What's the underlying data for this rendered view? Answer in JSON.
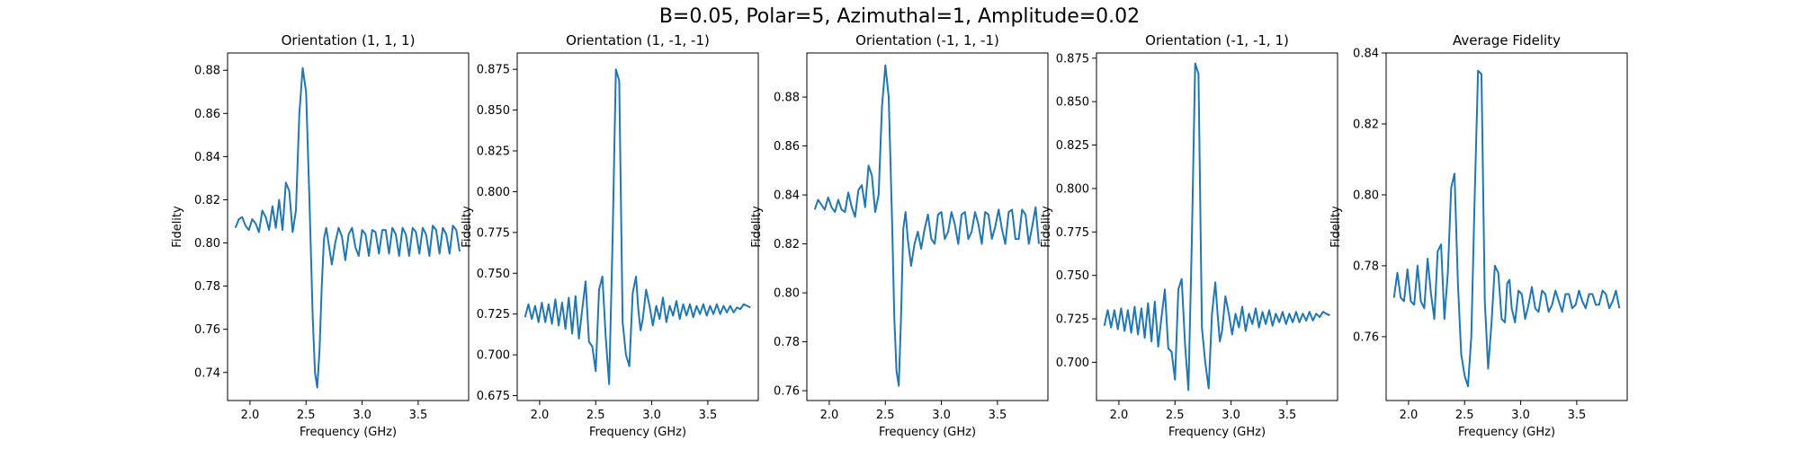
{
  "figure_title": "B=0.05, Polar=5, Azimuthal=1, Amplitude=0.02",
  "colors": {
    "line": "#1f77b4",
    "axes": "#000000",
    "background": "#ffffff"
  },
  "chart_data": [
    {
      "type": "line",
      "title": "Orientation (1, 1, 1)",
      "xlabel": "Frequency (GHz)",
      "ylabel": "Fidelity",
      "xlim": [
        1.8,
        3.95
      ],
      "ylim": [
        0.727,
        0.888
      ],
      "xticks": [
        2.0,
        2.5,
        3.0,
        3.5
      ],
      "xtick_labels": [
        "2.0",
        "2.5",
        "3.0",
        "3.5"
      ],
      "yticks": [
        0.74,
        0.76,
        0.78,
        0.8,
        0.82,
        0.84,
        0.86,
        0.88
      ],
      "ytick_labels": [
        "0.74",
        "0.76",
        "0.78",
        "0.80",
        "0.82",
        "0.84",
        "0.86",
        "0.88"
      ],
      "series": [
        {
          "x": [
            1.87,
            1.9,
            1.93,
            1.96,
            1.99,
            2.02,
            2.05,
            2.08,
            2.11,
            2.14,
            2.17,
            2.2,
            2.23,
            2.26,
            2.29,
            2.32,
            2.35,
            2.38,
            2.41,
            2.44,
            2.47,
            2.5,
            2.53,
            2.56,
            2.58,
            2.6,
            2.62,
            2.64,
            2.66,
            2.68,
            2.7,
            2.73,
            2.76,
            2.79,
            2.82,
            2.85,
            2.88,
            2.91,
            2.94,
            2.97,
            3.0,
            3.03,
            3.06,
            3.09,
            3.12,
            3.15,
            3.18,
            3.21,
            3.24,
            3.27,
            3.3,
            3.33,
            3.36,
            3.39,
            3.42,
            3.45,
            3.48,
            3.51,
            3.54,
            3.57,
            3.6,
            3.63,
            3.66,
            3.69,
            3.72,
            3.75,
            3.78,
            3.81,
            3.84,
            3.87
          ],
          "y": [
            0.807,
            0.811,
            0.812,
            0.808,
            0.806,
            0.811,
            0.809,
            0.805,
            0.815,
            0.812,
            0.806,
            0.817,
            0.807,
            0.82,
            0.806,
            0.828,
            0.824,
            0.805,
            0.815,
            0.86,
            0.881,
            0.87,
            0.82,
            0.765,
            0.74,
            0.733,
            0.75,
            0.78,
            0.802,
            0.807,
            0.8,
            0.79,
            0.8,
            0.807,
            0.803,
            0.792,
            0.804,
            0.807,
            0.798,
            0.794,
            0.806,
            0.804,
            0.794,
            0.806,
            0.805,
            0.795,
            0.806,
            0.806,
            0.795,
            0.807,
            0.804,
            0.794,
            0.807,
            0.804,
            0.794,
            0.807,
            0.805,
            0.795,
            0.807,
            0.804,
            0.794,
            0.808,
            0.806,
            0.795,
            0.807,
            0.804,
            0.795,
            0.808,
            0.806,
            0.796
          ]
        }
      ]
    },
    {
      "type": "line",
      "title": "Orientation (1, -1, -1)",
      "xlabel": "Frequency (GHz)",
      "ylabel": "Fidelity",
      "xlim": [
        1.8,
        3.95
      ],
      "ylim": [
        0.672,
        0.885
      ],
      "xticks": [
        2.0,
        2.5,
        3.0,
        3.5
      ],
      "xtick_labels": [
        "2.0",
        "2.5",
        "3.0",
        "3.5"
      ],
      "yticks": [
        0.675,
        0.7,
        0.725,
        0.75,
        0.775,
        0.8,
        0.825,
        0.85,
        0.875
      ],
      "ytick_labels": [
        "0.675",
        "0.700",
        "0.725",
        "0.750",
        "0.775",
        "0.800",
        "0.825",
        "0.850",
        "0.875"
      ],
      "series": [
        {
          "x": [
            1.87,
            1.9,
            1.93,
            1.96,
            1.99,
            2.02,
            2.05,
            2.08,
            2.11,
            2.14,
            2.17,
            2.2,
            2.23,
            2.26,
            2.29,
            2.32,
            2.35,
            2.38,
            2.41,
            2.44,
            2.47,
            2.5,
            2.53,
            2.56,
            2.59,
            2.62,
            2.65,
            2.68,
            2.71,
            2.74,
            2.77,
            2.8,
            2.83,
            2.86,
            2.88,
            2.9,
            2.92,
            2.95,
            2.98,
            3.01,
            3.04,
            3.07,
            3.1,
            3.13,
            3.16,
            3.19,
            3.22,
            3.25,
            3.28,
            3.31,
            3.34,
            3.37,
            3.4,
            3.43,
            3.46,
            3.49,
            3.52,
            3.55,
            3.58,
            3.61,
            3.64,
            3.67,
            3.7,
            3.73,
            3.76,
            3.79,
            3.82,
            3.85,
            3.88
          ],
          "y": [
            0.723,
            0.731,
            0.722,
            0.73,
            0.72,
            0.732,
            0.72,
            0.731,
            0.719,
            0.734,
            0.718,
            0.732,
            0.716,
            0.735,
            0.713,
            0.736,
            0.71,
            0.728,
            0.745,
            0.708,
            0.705,
            0.69,
            0.74,
            0.748,
            0.71,
            0.682,
            0.77,
            0.875,
            0.868,
            0.72,
            0.7,
            0.693,
            0.738,
            0.748,
            0.728,
            0.715,
            0.722,
            0.74,
            0.73,
            0.718,
            0.73,
            0.722,
            0.735,
            0.72,
            0.73,
            0.724,
            0.733,
            0.722,
            0.731,
            0.724,
            0.731,
            0.723,
            0.73,
            0.725,
            0.731,
            0.724,
            0.73,
            0.725,
            0.731,
            0.725,
            0.73,
            0.726,
            0.73,
            0.726,
            0.729,
            0.728,
            0.731,
            0.73,
            0.729
          ]
        }
      ]
    },
    {
      "type": "line",
      "title": "Orientation (-1, 1, -1)",
      "xlabel": "Frequency (GHz)",
      "ylabel": "Fidelity",
      "xlim": [
        1.8,
        3.95
      ],
      "ylim": [
        0.756,
        0.898
      ],
      "xticks": [
        2.0,
        2.5,
        3.0,
        3.5
      ],
      "xtick_labels": [
        "2.0",
        "2.5",
        "3.0",
        "3.5"
      ],
      "yticks": [
        0.76,
        0.78,
        0.8,
        0.82,
        0.84,
        0.86,
        0.88
      ],
      "ytick_labels": [
        "0.76",
        "0.78",
        "0.80",
        "0.82",
        "0.84",
        "0.86",
        "0.88"
      ],
      "series": [
        {
          "x": [
            1.87,
            1.9,
            1.93,
            1.96,
            1.99,
            2.02,
            2.05,
            2.08,
            2.11,
            2.14,
            2.17,
            2.2,
            2.23,
            2.26,
            2.29,
            2.32,
            2.35,
            2.38,
            2.41,
            2.44,
            2.47,
            2.5,
            2.53,
            2.56,
            2.58,
            2.6,
            2.62,
            2.64,
            2.66,
            2.68,
            2.7,
            2.73,
            2.76,
            2.79,
            2.82,
            2.85,
            2.88,
            2.91,
            2.94,
            2.97,
            3.0,
            3.03,
            3.06,
            3.09,
            3.12,
            3.15,
            3.18,
            3.21,
            3.24,
            3.27,
            3.3,
            3.33,
            3.36,
            3.39,
            3.42,
            3.45,
            3.48,
            3.51,
            3.54,
            3.57,
            3.6,
            3.63,
            3.66,
            3.69,
            3.72,
            3.75,
            3.78,
            3.81,
            3.84,
            3.87
          ],
          "y": [
            0.834,
            0.838,
            0.836,
            0.834,
            0.839,
            0.835,
            0.833,
            0.838,
            0.834,
            0.833,
            0.841,
            0.835,
            0.831,
            0.842,
            0.844,
            0.835,
            0.852,
            0.848,
            0.833,
            0.84,
            0.876,
            0.893,
            0.88,
            0.83,
            0.79,
            0.768,
            0.762,
            0.79,
            0.826,
            0.833,
            0.822,
            0.811,
            0.82,
            0.825,
            0.818,
            0.826,
            0.832,
            0.822,
            0.82,
            0.832,
            0.833,
            0.822,
            0.825,
            0.833,
            0.828,
            0.82,
            0.832,
            0.833,
            0.822,
            0.825,
            0.833,
            0.828,
            0.82,
            0.833,
            0.832,
            0.822,
            0.827,
            0.834,
            0.826,
            0.82,
            0.833,
            0.834,
            0.822,
            0.822,
            0.834,
            0.832,
            0.82,
            0.827,
            0.835,
            0.82
          ]
        }
      ]
    },
    {
      "type": "line",
      "title": "Orientation (-1, -1, 1)",
      "xlabel": "Frequency (GHz)",
      "ylabel": "Fidelity",
      "xlim": [
        1.8,
        3.95
      ],
      "ylim": [
        0.678,
        0.878
      ],
      "xticks": [
        2.0,
        2.5,
        3.0,
        3.5
      ],
      "xtick_labels": [
        "2.0",
        "2.5",
        "3.0",
        "3.5"
      ],
      "yticks": [
        0.7,
        0.725,
        0.75,
        0.775,
        0.8,
        0.825,
        0.85,
        0.875
      ],
      "ytick_labels": [
        "0.700",
        "0.725",
        "0.750",
        "0.775",
        "0.800",
        "0.825",
        "0.850",
        "0.875"
      ],
      "series": [
        {
          "x": [
            1.87,
            1.9,
            1.93,
            1.96,
            1.99,
            2.02,
            2.05,
            2.08,
            2.11,
            2.14,
            2.17,
            2.2,
            2.23,
            2.26,
            2.29,
            2.32,
            2.35,
            2.38,
            2.41,
            2.44,
            2.47,
            2.5,
            2.53,
            2.56,
            2.59,
            2.62,
            2.65,
            2.68,
            2.71,
            2.74,
            2.77,
            2.8,
            2.83,
            2.86,
            2.88,
            2.9,
            2.92,
            2.95,
            2.98,
            3.01,
            3.04,
            3.07,
            3.1,
            3.13,
            3.16,
            3.19,
            3.22,
            3.25,
            3.28,
            3.31,
            3.34,
            3.37,
            3.4,
            3.43,
            3.46,
            3.49,
            3.52,
            3.55,
            3.58,
            3.61,
            3.64,
            3.67,
            3.7,
            3.73,
            3.76,
            3.79,
            3.82,
            3.85,
            3.88
          ],
          "y": [
            0.721,
            0.73,
            0.72,
            0.73,
            0.719,
            0.731,
            0.718,
            0.73,
            0.717,
            0.732,
            0.716,
            0.731,
            0.714,
            0.734,
            0.712,
            0.735,
            0.709,
            0.726,
            0.742,
            0.708,
            0.706,
            0.69,
            0.742,
            0.748,
            0.71,
            0.684,
            0.77,
            0.872,
            0.866,
            0.72,
            0.7,
            0.685,
            0.728,
            0.746,
            0.728,
            0.712,
            0.718,
            0.738,
            0.728,
            0.716,
            0.728,
            0.72,
            0.732,
            0.718,
            0.728,
            0.722,
            0.731,
            0.72,
            0.729,
            0.722,
            0.73,
            0.721,
            0.728,
            0.723,
            0.729,
            0.722,
            0.728,
            0.723,
            0.729,
            0.723,
            0.728,
            0.724,
            0.729,
            0.724,
            0.728,
            0.726,
            0.729,
            0.728,
            0.727
          ]
        }
      ]
    },
    {
      "type": "line",
      "title": "Average Fidelity",
      "xlabel": "Frequency (GHz)",
      "ylabel": "Fidelity",
      "xlim": [
        1.8,
        3.95
      ],
      "ylim": [
        0.742,
        0.84
      ],
      "xticks": [
        2.0,
        2.5,
        3.0,
        3.5
      ],
      "xtick_labels": [
        "2.0",
        "2.5",
        "3.0",
        "3.5"
      ],
      "yticks": [
        0.76,
        0.78,
        0.8,
        0.82,
        0.84
      ],
      "ytick_labels": [
        "0.76",
        "0.78",
        "0.80",
        "0.82",
        "0.84"
      ],
      "series": [
        {
          "x": [
            1.87,
            1.9,
            1.93,
            1.96,
            1.99,
            2.02,
            2.05,
            2.08,
            2.11,
            2.14,
            2.17,
            2.2,
            2.23,
            2.26,
            2.29,
            2.32,
            2.35,
            2.38,
            2.41,
            2.44,
            2.47,
            2.5,
            2.53,
            2.56,
            2.59,
            2.62,
            2.65,
            2.68,
            2.71,
            2.74,
            2.77,
            2.8,
            2.83,
            2.86,
            2.88,
            2.9,
            2.92,
            2.95,
            2.98,
            3.01,
            3.04,
            3.07,
            3.1,
            3.13,
            3.16,
            3.19,
            3.22,
            3.25,
            3.28,
            3.31,
            3.34,
            3.37,
            3.4,
            3.43,
            3.46,
            3.49,
            3.52,
            3.55,
            3.58,
            3.61,
            3.64,
            3.67,
            3.7,
            3.73,
            3.76,
            3.79,
            3.82,
            3.85,
            3.88
          ],
          "y": [
            0.771,
            0.778,
            0.771,
            0.77,
            0.779,
            0.77,
            0.769,
            0.78,
            0.77,
            0.768,
            0.782,
            0.772,
            0.765,
            0.784,
            0.786,
            0.765,
            0.778,
            0.802,
            0.806,
            0.775,
            0.755,
            0.749,
            0.746,
            0.76,
            0.8,
            0.835,
            0.834,
            0.77,
            0.751,
            0.764,
            0.78,
            0.778,
            0.765,
            0.764,
            0.775,
            0.776,
            0.768,
            0.764,
            0.773,
            0.772,
            0.765,
            0.769,
            0.774,
            0.768,
            0.767,
            0.773,
            0.772,
            0.767,
            0.769,
            0.773,
            0.77,
            0.767,
            0.772,
            0.772,
            0.768,
            0.769,
            0.773,
            0.77,
            0.768,
            0.772,
            0.772,
            0.769,
            0.769,
            0.773,
            0.772,
            0.768,
            0.77,
            0.773,
            0.768
          ]
        }
      ]
    }
  ]
}
